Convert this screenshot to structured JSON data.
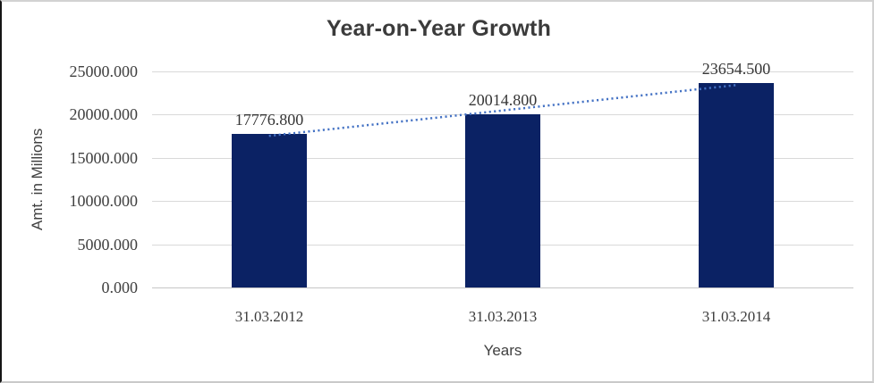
{
  "chart_data": {
    "type": "bar",
    "title": "Year-on-Year Growth",
    "categories": [
      "31.03.2012",
      "31.03.2013",
      "31.03.2014"
    ],
    "values": [
      17776.8,
      20014.8,
      23654.5
    ],
    "value_labels": [
      "17776.800",
      "20014.800",
      "23654.500"
    ],
    "xlabel": "Years",
    "ylabel": "Amt. in Millions",
    "ylim": [
      0,
      25000
    ],
    "ytick_step": 5000,
    "ytick_labels": [
      "0.000",
      "5000.000",
      "10000.000",
      "15000.000",
      "20000.000",
      "25000.000"
    ],
    "grid": true,
    "legend": false,
    "colors": {
      "bar": "#0b2264",
      "trendline": "#4472c4",
      "gridline": "#d9d9d9",
      "axis_line": "#c6c6c6",
      "text": "#3b3b3b"
    },
    "trendline": {
      "type": "linear",
      "style": "dotted"
    }
  }
}
